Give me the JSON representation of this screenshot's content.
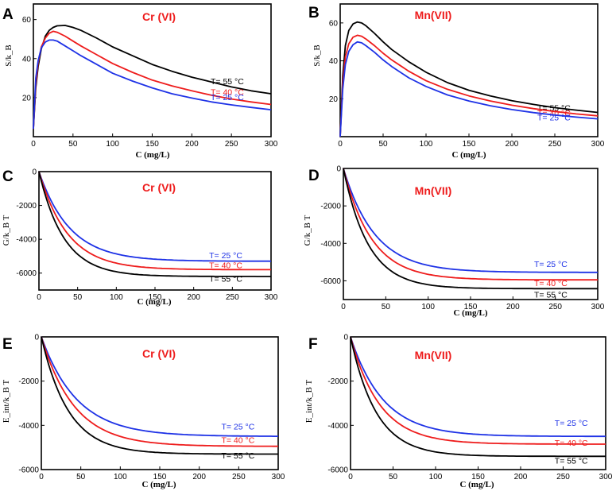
{
  "figure": {
    "panel_letters": [
      "A",
      "B",
      "C",
      "D",
      "E",
      "F"
    ]
  },
  "chart_data": [
    {
      "panel": "A",
      "type": "line",
      "title": "Cr (VI)",
      "xlabel": "C (mg/L)",
      "ylabel": "S/k_B",
      "xlim": [
        0,
        300
      ],
      "ylim": [
        0,
        68
      ],
      "xticks": [
        0,
        50,
        100,
        150,
        200,
        250,
        300
      ],
      "yticks": [
        20,
        40,
        60
      ],
      "x": [
        0,
        3,
        6,
        10,
        15,
        20,
        25,
        30,
        40,
        50,
        60,
        80,
        100,
        125,
        150,
        175,
        200,
        225,
        250,
        275,
        300
      ],
      "series": [
        {
          "name": "T= 55 °C",
          "color": "#000000",
          "values": [
            4,
            25,
            36,
            45,
            51.5,
            54.5,
            56,
            56.8,
            57,
            56,
            54.5,
            50.5,
            46,
            41.5,
            37,
            33.5,
            30.5,
            28,
            25.5,
            23.5,
            22
          ]
        },
        {
          "name": "T= 40 °C",
          "color": "#ee1c1c",
          "values": [
            4,
            27,
            38,
            46,
            50.5,
            53,
            54,
            53.5,
            51.5,
            49,
            46.5,
            42,
            37.5,
            33,
            29,
            26,
            23.5,
            21.2,
            19.3,
            17.8,
            16.5
          ]
        },
        {
          "name": "T= 25 °C",
          "color": "#1e32e6",
          "values": [
            4,
            30,
            39,
            45.5,
            48.5,
            49.5,
            49.5,
            49,
            46.5,
            44,
            41.5,
            37,
            32.5,
            28.5,
            25,
            22,
            19.8,
            17.8,
            16.3,
            15,
            13.8
          ]
        }
      ]
    },
    {
      "panel": "B",
      "type": "line",
      "title": "Mn(VII)",
      "xlabel": "C (mg/L)",
      "ylabel": "S/k_B",
      "xlim": [
        0,
        300
      ],
      "ylim": [
        0,
        70
      ],
      "xticks": [
        0,
        50,
        100,
        150,
        200,
        250,
        300
      ],
      "yticks": [
        20,
        40,
        60
      ],
      "x": [
        0,
        3,
        6,
        10,
        15,
        20,
        25,
        30,
        40,
        50,
        60,
        80,
        100,
        125,
        150,
        175,
        200,
        225,
        250,
        275,
        300
      ],
      "series": [
        {
          "name": "T= 55 °C",
          "color": "#000000",
          "values": [
            0,
            32,
            48,
            56,
            59.5,
            60.5,
            60,
            58.5,
            54.5,
            50,
            46,
            39.5,
            34,
            28.5,
            24.5,
            21.5,
            19,
            17,
            15.3,
            14,
            12.8
          ]
        },
        {
          "name": "T= 40 °C",
          "color": "#ee1c1c",
          "values": [
            0,
            28,
            42,
            49,
            52.5,
            53.5,
            53,
            51.5,
            48,
            44,
            40.5,
            34.5,
            29.5,
            25,
            21.5,
            18.8,
            16.6,
            14.8,
            13.3,
            12,
            11
          ]
        },
        {
          "name": "T= 25 °C",
          "color": "#1e32e6",
          "values": [
            0,
            25,
            38,
            45,
            48.5,
            50,
            49.5,
            48,
            44.5,
            40.5,
            37,
            31,
            26.5,
            22,
            18.8,
            16.3,
            14.3,
            12.7,
            11.4,
            10.3,
            9.4
          ]
        }
      ]
    },
    {
      "panel": "C",
      "type": "line",
      "title": "Cr (VI)",
      "xlabel": "C (mg/L)",
      "ylabel": "G/k_B T",
      "xlim": [
        0,
        300
      ],
      "ylim": [
        -7000,
        0
      ],
      "xticks": [
        0,
        50,
        100,
        150,
        200,
        250,
        300
      ],
      "yticks": [
        0,
        -2000,
        -4000,
        -6000
      ],
      "series": [
        {
          "name": "T= 25 °C",
          "color": "#1e32e6",
          "plateau": -5300,
          "k": 0.025,
          "ldx": 220,
          "ldy": -4940
        },
        {
          "name": "T= 40 °C",
          "color": "#ee1c1c",
          "plateau": -5800,
          "k": 0.027,
          "ldx": 220,
          "ldy": -5530
        },
        {
          "name": "T= 55 °C",
          "color": "#000000",
          "plateau": -6200,
          "k": 0.031,
          "ldx": 220,
          "ldy": -6320
        }
      ]
    },
    {
      "panel": "D",
      "type": "line",
      "title": "Mn(VII)",
      "xlabel": "C (mg/L)",
      "ylabel": "G/k_B T",
      "xlim": [
        0,
        300
      ],
      "ylim": [
        -7000,
        0
      ],
      "xticks": [
        0,
        50,
        100,
        150,
        200,
        250,
        300
      ],
      "yticks": [
        0,
        -2000,
        -4000,
        -6000
      ],
      "series": [
        {
          "name": "T= 25 °C",
          "color": "#1e32e6",
          "plateau": -5550,
          "k": 0.027,
          "ldx": 225,
          "ldy": -5100
        },
        {
          "name": "T= 40 °C",
          "color": "#ee1c1c",
          "plateau": -5950,
          "k": 0.03,
          "ldx": 225,
          "ldy": -6100
        },
        {
          "name": "T= 55 °C",
          "color": "#000000",
          "plateau": -6420,
          "k": 0.034,
          "ldx": 225,
          "ldy": -6720
        }
      ]
    },
    {
      "panel": "E",
      "type": "line",
      "title": "Cr (VI)",
      "xlabel": "C (mg/L)",
      "ylabel": "E_int/k_B T",
      "xlim": [
        0,
        300
      ],
      "ylim": [
        -6000,
        0
      ],
      "xticks": [
        0,
        50,
        100,
        150,
        200,
        250,
        300
      ],
      "yticks": [
        0,
        -2000,
        -4000,
        -6000
      ],
      "series": [
        {
          "name": "T= 25 °C",
          "color": "#1e32e6",
          "plateau": -4500,
          "k": 0.022,
          "ldx": 228,
          "ldy": -4050
        },
        {
          "name": "T= 40 °C",
          "color": "#ee1c1c",
          "plateau": -4950,
          "k": 0.024,
          "ldx": 228,
          "ldy": -4650
        },
        {
          "name": "T= 55 °C",
          "color": "#000000",
          "plateau": -5300,
          "k": 0.029,
          "ldx": 228,
          "ldy": -5360
        }
      ]
    },
    {
      "panel": "F",
      "type": "line",
      "title": "Mn(VII)",
      "xlabel": "C (mg/L)",
      "ylabel": "E_int/k_B T",
      "xlim": [
        0,
        300
      ],
      "ylim": [
        -6000,
        0
      ],
      "xticks": [
        0,
        50,
        100,
        150,
        200,
        250,
        300
      ],
      "yticks": [
        0,
        -2000,
        -4000,
        -6000
      ],
      "series": [
        {
          "name": "T= 25 °C",
          "color": "#1e32e6",
          "plateau": -4500,
          "k": 0.026,
          "ldx": 240,
          "ldy": -3880
        },
        {
          "name": "T= 40 °C",
          "color": "#ee1c1c",
          "plateau": -4850,
          "k": 0.029,
          "ldx": 240,
          "ldy": -4780
        },
        {
          "name": "T= 55 °C",
          "color": "#000000",
          "plateau": -5400,
          "k": 0.033,
          "ldx": 240,
          "ldy": -5580
        }
      ]
    }
  ]
}
